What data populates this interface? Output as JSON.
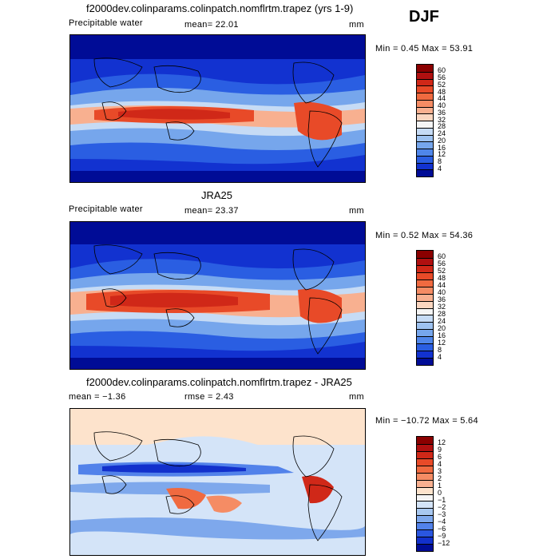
{
  "season": "DJF",
  "panels": [
    {
      "title": "f2000dev.colinparams.colinpatch.nomflrtm.trapez (yrs 1-9)",
      "variable": "Precipitable water",
      "stat_text": "mean=  22.01",
      "units": "mm",
      "minmax": "Min =   0.45  Max =  53.91",
      "levels": [
        "60",
        "56",
        "52",
        "48",
        "44",
        "40",
        "36",
        "32",
        "28",
        "24",
        "20",
        "16",
        "12",
        "8",
        "4"
      ],
      "colors": [
        "#8b0000",
        "#b01010",
        "#d02818",
        "#e84a28",
        "#f06a40",
        "#f58c64",
        "#f8b090",
        "#fad6c0",
        "#f5f5f5",
        "#c6dbf5",
        "#9ec2f0",
        "#76a6ec",
        "#4f86ea",
        "#2a5ee2",
        "#1232d0",
        "#000c96"
      ]
    },
    {
      "title": "JRA25",
      "variable": "Precipitable water",
      "stat_text": "mean=  23.37",
      "units": "mm",
      "minmax": "Min =   0.52  Max =  54.36",
      "levels": [
        "60",
        "56",
        "52",
        "48",
        "44",
        "40",
        "36",
        "32",
        "28",
        "24",
        "20",
        "16",
        "12",
        "8",
        "4"
      ],
      "colors": [
        "#8b0000",
        "#b01010",
        "#d02818",
        "#e84a28",
        "#f06a40",
        "#f58c64",
        "#f8b090",
        "#fad6c0",
        "#f5f5f5",
        "#c6dbf5",
        "#9ec2f0",
        "#76a6ec",
        "#4f86ea",
        "#2a5ee2",
        "#1232d0",
        "#000c96"
      ]
    },
    {
      "title": "f2000dev.colinparams.colinpatch.nomflrtm.trapez - JRA25",
      "stat_text": "mean =  −1.36",
      "stat2_text": "rmse =   2.43",
      "units": "mm",
      "minmax": "Min = −10.72  Max =    5.64",
      "levels": [
        "12",
        "9",
        "6",
        "4",
        "3",
        "2",
        "1",
        "0",
        "−1",
        "−2",
        "−3",
        "−4",
        "−6",
        "−9",
        "−12"
      ],
      "colors": [
        "#8b0000",
        "#b01010",
        "#d02818",
        "#e84a28",
        "#f06a40",
        "#f58c64",
        "#f8b090",
        "#fde3cc",
        "#f5f5f5",
        "#d4e4f8",
        "#a8c8f0",
        "#7ea8ec",
        "#5282ea",
        "#2a56e0",
        "#1230cc",
        "#000c96"
      ]
    }
  ],
  "chart_data": [
    {
      "type": "heatmap",
      "title": "f2000dev.colinparams.colinpatch.nomflrtm.trapez (yrs 1-9)",
      "subtitle": "Precipitable water",
      "units": "mm",
      "mean": 22.01,
      "min": 0.45,
      "max": 53.91,
      "contour_levels": [
        4,
        8,
        12,
        16,
        20,
        24,
        28,
        32,
        36,
        40,
        44,
        48,
        52,
        56,
        60
      ]
    },
    {
      "type": "heatmap",
      "title": "JRA25",
      "subtitle": "Precipitable water",
      "units": "mm",
      "mean": 23.37,
      "min": 0.52,
      "max": 54.36,
      "contour_levels": [
        4,
        8,
        12,
        16,
        20,
        24,
        28,
        32,
        36,
        40,
        44,
        48,
        52,
        56,
        60
      ]
    },
    {
      "type": "heatmap",
      "title": "f2000dev.colinparams.colinpatch.nomflrtm.trapez - JRA25",
      "units": "mm",
      "mean": -1.36,
      "rmse": 2.43,
      "min": -10.72,
      "max": 5.64,
      "contour_levels": [
        -12,
        -9,
        -6,
        -4,
        -3,
        -2,
        -1,
        0,
        1,
        2,
        3,
        4,
        6,
        9,
        12
      ]
    }
  ]
}
